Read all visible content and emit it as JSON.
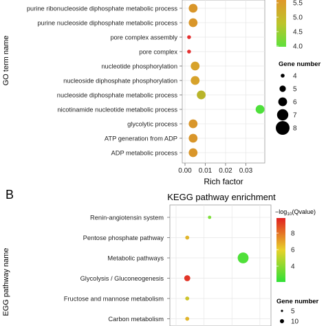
{
  "chart_data": [
    {
      "type": "scatter",
      "title": "",
      "xlabel": "Rich factor",
      "ylabel": "GO term name",
      "xlim": [
        0,
        0.039
      ],
      "xticks": [
        "0.00",
        "0.01",
        "0.02",
        "0.03"
      ],
      "xtick_values": [
        0,
        0.01,
        0.02,
        0.03
      ],
      "grid": true,
      "color_legend": {
        "ticks": [
          "5.5",
          "5.0",
          "4.5",
          "4.0"
        ],
        "low_color": "#5fe03c",
        "high_color": "#e0982b"
      },
      "size_legend": {
        "title": "Gene number",
        "values": [
          "4",
          "5",
          "6",
          "7",
          "8"
        ]
      },
      "points": [
        {
          "term": "purine ribonucleoside diphosphate metabolic process",
          "x": 0.004,
          "gene_number": 6,
          "color": "#d9962a"
        },
        {
          "term": "purine nucleoside diphosphate metabolic process",
          "x": 0.004,
          "gene_number": 6,
          "color": "#d9962a"
        },
        {
          "term": "pore complex assembly",
          "x": 0.002,
          "gene_number": 4,
          "color": "#e53030"
        },
        {
          "term": "pore complex",
          "x": 0.002,
          "gene_number": 4,
          "color": "#e53030"
        },
        {
          "term": "nucleotide phosphorylation",
          "x": 0.005,
          "gene_number": 6,
          "color": "#d7a22a"
        },
        {
          "term": "nucleoside diphosphate phosphorylation",
          "x": 0.005,
          "gene_number": 6,
          "color": "#d7a22a"
        },
        {
          "term": "nucleoside diphosphate metabolic process",
          "x": 0.008,
          "gene_number": 6,
          "color": "#b8b42a"
        },
        {
          "term": "nicotinamide nucleotide metabolic process",
          "x": 0.037,
          "gene_number": 6,
          "color": "#4ee03a"
        },
        {
          "term": "glycolytic process",
          "x": 0.004,
          "gene_number": 6,
          "color": "#d9962a"
        },
        {
          "term": "ATP generation from ADP",
          "x": 0.004,
          "gene_number": 6,
          "color": "#d9962a"
        },
        {
          "term": "ADP metabolic process",
          "x": 0.004,
          "gene_number": 6,
          "color": "#d9962a"
        }
      ]
    },
    {
      "type": "scatter",
      "panel_label": "B",
      "title": "KEGG pathway enrichment",
      "xlabel": "",
      "ylabel": "EGG pathway name",
      "grid": true,
      "color_legend": {
        "title_prefix": "−log",
        "title_sub": "10",
        "title_suffix": "(Qvalue)",
        "ticks": [
          "8",
          "6",
          "4"
        ]
      },
      "size_legend": {
        "title": "Gene number",
        "values": [
          "5",
          "10"
        ]
      },
      "points": [
        {
          "term": "Renin-angiotensin system",
          "x": 0.012,
          "gene_number": 3,
          "color": "#7ee03a"
        },
        {
          "term": "Pentose phosphate pathway",
          "x": 0.004,
          "gene_number": 4,
          "color": "#e0b52b"
        },
        {
          "term": "Metabolic pathways",
          "x": 0.024,
          "gene_number": 14,
          "color": "#4fe039"
        },
        {
          "term": "Glycolysis / Gluconeogenesis",
          "x": 0.004,
          "gene_number": 7,
          "color": "#e23528"
        },
        {
          "term": "Fructose and mannose metabolism",
          "x": 0.004,
          "gene_number": 4,
          "color": "#cdc42b"
        },
        {
          "term": "Carbon metabolism",
          "x": 0.004,
          "gene_number": 4,
          "color": "#e0b52b"
        }
      ]
    }
  ]
}
